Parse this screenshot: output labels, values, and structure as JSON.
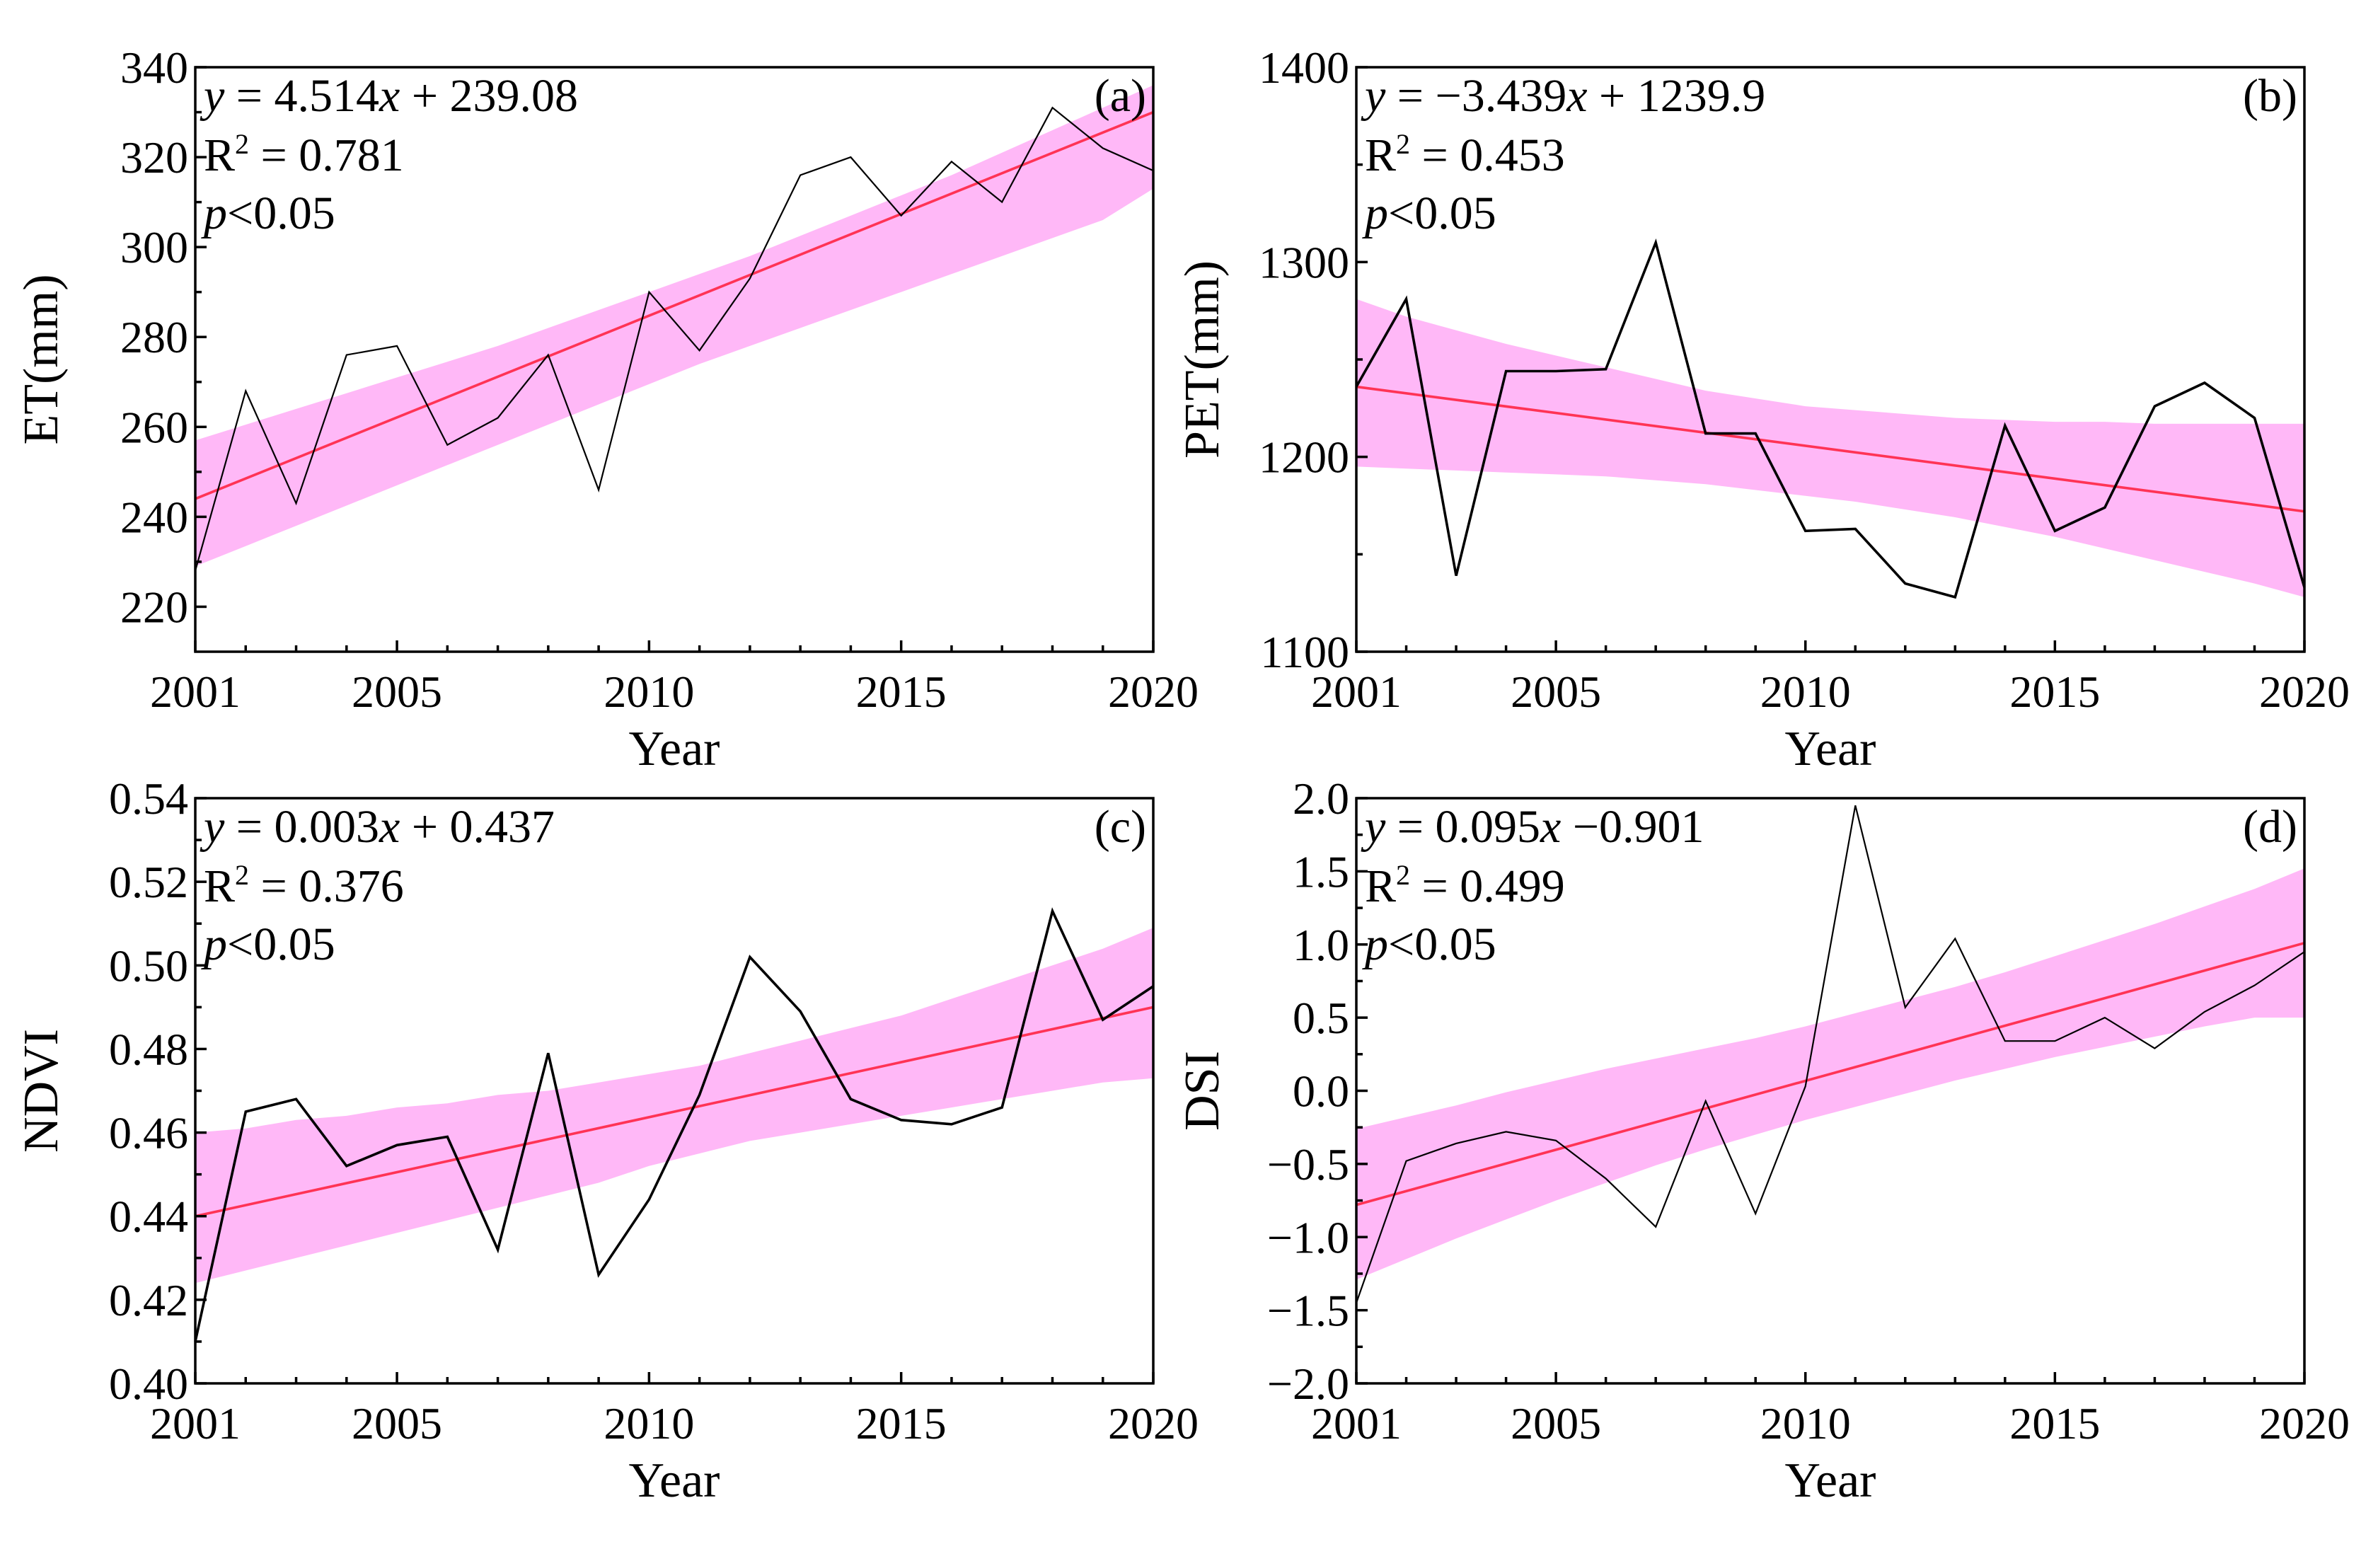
{
  "figure": {
    "x_label": "Year"
  },
  "colors": {
    "data_line": "#000000",
    "fit_line": "#ff3355",
    "band_fill": "#ffb8f7"
  },
  "chart_data": [
    {
      "id": "a",
      "type": "line",
      "panel_label": "(a)",
      "xlabel": "Year",
      "ylabel": "ET(mm)",
      "xlim": [
        2001,
        2020
      ],
      "ylim": [
        210,
        340
      ],
      "x_ticks": [
        2001,
        2005,
        2010,
        2015,
        2020
      ],
      "x_tick_labels": [
        "2001",
        "2005",
        "2010",
        "2015",
        "2020"
      ],
      "y_ticks": [
        220,
        240,
        260,
        280,
        300,
        320,
        340
      ],
      "y_tick_labels": [
        "220",
        "240",
        "260",
        "280",
        "300",
        "320",
        "340"
      ],
      "eq_lhs": "y",
      "eq_rest": " = 4.514",
      "eq_var": "x",
      "eq_tail": " + 239.08",
      "r2_prefix": "R",
      "r2_sup": "2",
      "r2_rest": " = 0.781",
      "p_sym": "p",
      "p_rest": "<0.05",
      "line_weight": "thin",
      "x": [
        2001,
        2002,
        2003,
        2004,
        2005,
        2006,
        2007,
        2008,
        2009,
        2010,
        2011,
        2012,
        2013,
        2014,
        2015,
        2016,
        2017,
        2018,
        2019,
        2020
      ],
      "y": [
        228,
        268,
        243,
        276,
        278,
        256,
        262,
        276,
        246,
        290,
        277,
        293,
        316,
        320,
        307,
        319,
        310,
        331,
        322,
        317
      ],
      "fit_start": 244,
      "fit_end": 330,
      "band_upper": [
        257,
        260.5,
        264,
        267.5,
        271,
        274.5,
        278,
        282,
        286,
        290,
        294,
        298,
        302.5,
        307,
        311.5,
        316,
        321,
        326,
        331,
        336
      ],
      "band_lower": [
        229,
        233.5,
        238,
        242.5,
        247,
        251.5,
        256,
        260.5,
        265,
        269.5,
        274,
        278,
        282,
        286,
        290,
        294,
        298,
        302,
        306,
        313
      ]
    },
    {
      "id": "b",
      "type": "line",
      "panel_label": "(b)",
      "xlabel": "Year",
      "ylabel": "PET(mm)",
      "xlim": [
        2001,
        2020
      ],
      "ylim": [
        1100,
        1400
      ],
      "x_ticks": [
        2001,
        2005,
        2010,
        2015,
        2020
      ],
      "x_tick_labels": [
        "2001",
        "2005",
        "2010",
        "2015",
        "2020"
      ],
      "y_ticks": [
        1100,
        1200,
        1300,
        1400
      ],
      "y_tick_labels": [
        "1100",
        "1200",
        "1300",
        "1400"
      ],
      "eq_lhs": "y",
      "eq_rest": " = −3.439",
      "eq_var": "x",
      "eq_tail": " + 1239.9",
      "r2_prefix": "R",
      "r2_sup": "2",
      "r2_rest": " = 0.453",
      "p_sym": "p",
      "p_rest": "<0.05",
      "line_weight": "medium",
      "x": [
        2001,
        2002,
        2003,
        2004,
        2005,
        2006,
        2007,
        2008,
        2009,
        2010,
        2011,
        2012,
        2013,
        2014,
        2015,
        2016,
        2017,
        2018,
        2019,
        2020
      ],
      "y": [
        1236,
        1281,
        1139,
        1244,
        1244,
        1245,
        1310,
        1212,
        1212,
        1162,
        1163,
        1135,
        1128,
        1216,
        1162,
        1174,
        1226,
        1238,
        1220,
        1133
      ],
      "fit_start": 1236,
      "fit_end": 1172,
      "band_upper": [
        1281,
        1272,
        1265,
        1258,
        1252,
        1246,
        1240,
        1234,
        1230,
        1226,
        1224,
        1222,
        1220,
        1219,
        1218,
        1218,
        1217,
        1217,
        1217,
        1217
      ],
      "band_lower": [
        1195,
        1194,
        1193,
        1192,
        1191,
        1190,
        1188,
        1186,
        1183,
        1180,
        1177,
        1173,
        1169,
        1164,
        1159,
        1153,
        1147,
        1141,
        1135,
        1128
      ]
    },
    {
      "id": "c",
      "type": "line",
      "panel_label": "(c)",
      "xlabel": "Year",
      "ylabel": "NDVI",
      "xlim": [
        2001,
        2020
      ],
      "ylim": [
        0.4,
        0.54
      ],
      "x_ticks": [
        2001,
        2005,
        2010,
        2015,
        2020
      ],
      "x_tick_labels": [
        "2001",
        "2005",
        "2010",
        "2015",
        "2020"
      ],
      "y_ticks": [
        0.4,
        0.42,
        0.44,
        0.46,
        0.48,
        0.5,
        0.52,
        0.54
      ],
      "y_tick_labels": [
        "0.40",
        "0.42",
        "0.44",
        "0.46",
        "0.48",
        "0.50",
        "0.52",
        "0.54"
      ],
      "eq_lhs": "y",
      "eq_rest": " = 0.003",
      "eq_var": "x",
      "eq_tail": " + 0.437",
      "r2_prefix": "R",
      "r2_sup": "2",
      "r2_rest": " = 0.376",
      "p_sym": "p",
      "p_rest": "<0.05",
      "line_weight": "medium",
      "x": [
        2001,
        2002,
        2003,
        2004,
        2005,
        2006,
        2007,
        2008,
        2009,
        2010,
        2011,
        2012,
        2013,
        2014,
        2015,
        2016,
        2017,
        2018,
        2019,
        2020
      ],
      "y": [
        0.41,
        0.465,
        0.468,
        0.452,
        0.457,
        0.459,
        0.432,
        0.479,
        0.426,
        0.444,
        0.469,
        0.502,
        0.489,
        0.468,
        0.463,
        0.462,
        0.466,
        0.513,
        0.487,
        0.495
      ],
      "fit_start": 0.44,
      "fit_end": 0.49,
      "band_upper": [
        0.46,
        0.461,
        0.463,
        0.464,
        0.466,
        0.467,
        0.469,
        0.47,
        0.472,
        0.474,
        0.476,
        0.479,
        0.482,
        0.485,
        0.488,
        0.492,
        0.496,
        0.5,
        0.504,
        0.509
      ],
      "band_lower": [
        0.424,
        0.427,
        0.43,
        0.433,
        0.436,
        0.439,
        0.442,
        0.445,
        0.448,
        0.452,
        0.455,
        0.458,
        0.46,
        0.462,
        0.464,
        0.466,
        0.468,
        0.47,
        0.472,
        0.473
      ]
    },
    {
      "id": "d",
      "type": "line",
      "panel_label": "(d)",
      "xlabel": "Year",
      "ylabel": "DSI",
      "xlim": [
        2001,
        2020
      ],
      "ylim": [
        -2.0,
        2.0
      ],
      "x_ticks": [
        2001,
        2005,
        2010,
        2015,
        2020
      ],
      "x_tick_labels": [
        "2001",
        "2005",
        "2010",
        "2015",
        "2020"
      ],
      "y_ticks": [
        -2.0,
        -1.5,
        -1.0,
        -0.5,
        0.0,
        0.5,
        1.0,
        1.5,
        2.0
      ],
      "y_tick_labels": [
        "−2.0",
        "−1.5",
        "−1.0",
        "−0.5",
        "0.0",
        "0.5",
        "1.0",
        "1.5",
        "2.0"
      ],
      "eq_lhs": "y",
      "eq_rest": " = 0.095",
      "eq_var": "x",
      "eq_tail": " −0.901",
      "r2_prefix": "R",
      "r2_sup": "2",
      "r2_rest": " = 0.499",
      "p_sym": "p",
      "p_rest": "<0.05",
      "line_weight": "thin",
      "x": [
        2001,
        2002,
        2003,
        2004,
        2005,
        2006,
        2007,
        2008,
        2009,
        2010,
        2011,
        2012,
        2013,
        2014,
        2015,
        2016,
        2017,
        2018,
        2019,
        2020
      ],
      "y": [
        -1.45,
        -0.48,
        -0.36,
        -0.28,
        -0.34,
        -0.6,
        -0.93,
        -0.07,
        -0.84,
        0.03,
        1.95,
        0.57,
        1.04,
        0.34,
        0.34,
        0.5,
        0.29,
        0.54,
        0.72,
        0.95
      ],
      "fit_start": -0.78,
      "fit_end": 1.01,
      "band_upper": [
        -0.26,
        -0.18,
        -0.1,
        -0.01,
        0.07,
        0.15,
        0.22,
        0.29,
        0.36,
        0.44,
        0.53,
        0.62,
        0.71,
        0.81,
        0.92,
        1.03,
        1.14,
        1.26,
        1.38,
        1.52
      ],
      "band_lower": [
        -1.29,
        -1.15,
        -1.01,
        -0.88,
        -0.75,
        -0.63,
        -0.51,
        -0.4,
        -0.3,
        -0.2,
        -0.11,
        -0.02,
        0.07,
        0.15,
        0.23,
        0.3,
        0.37,
        0.44,
        0.5,
        0.5
      ]
    }
  ]
}
